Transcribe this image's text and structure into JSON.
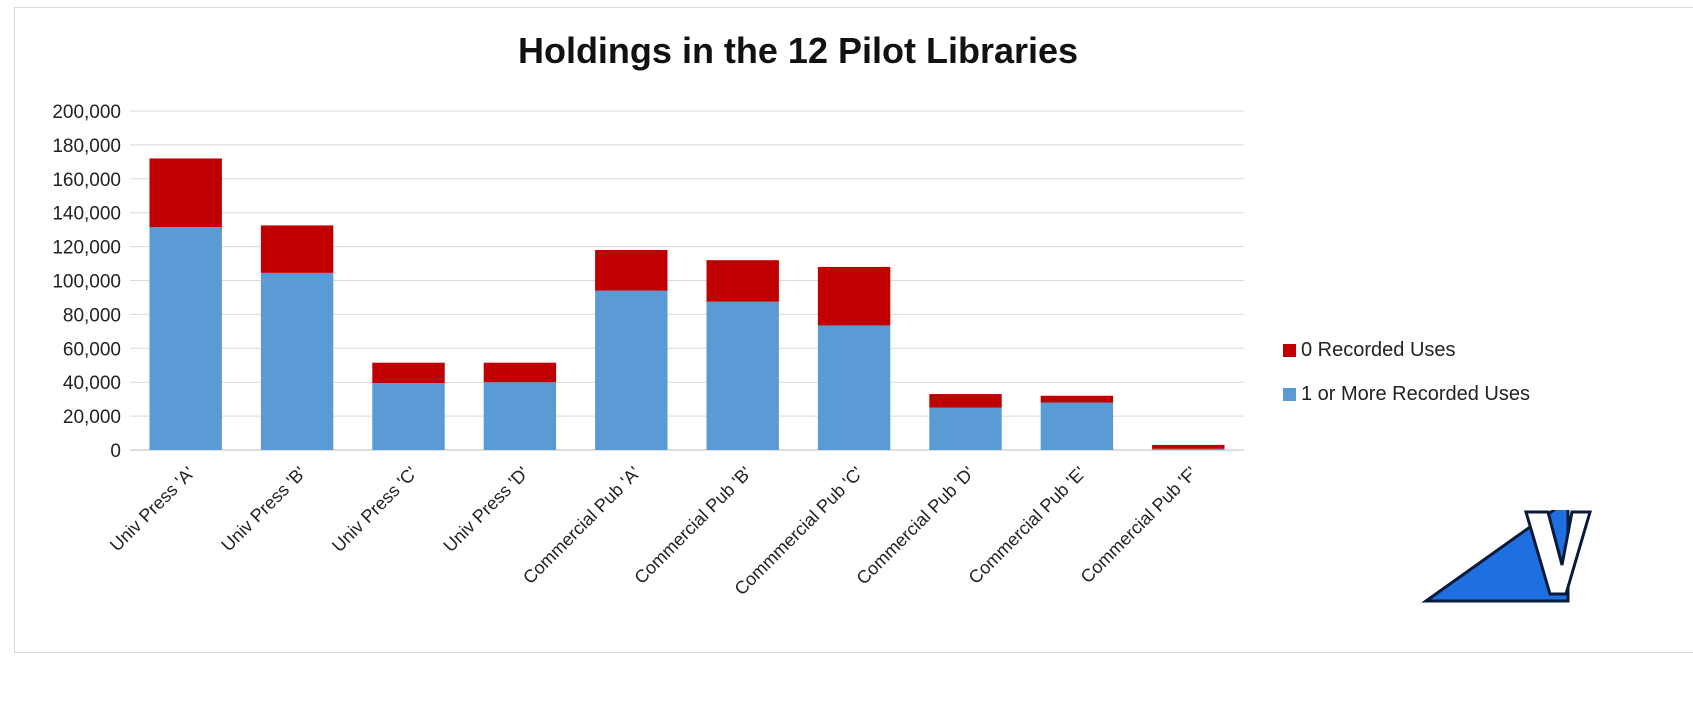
{
  "chart_data": {
    "type": "bar",
    "stacked": true,
    "title": "Holdings in the 12 Pilot Libraries",
    "xlabel": "",
    "ylabel": "",
    "ylim": [
      0,
      200000
    ],
    "yticks": [
      0,
      20000,
      40000,
      60000,
      80000,
      100000,
      120000,
      140000,
      160000,
      180000,
      200000
    ],
    "ytick_labels": [
      "0",
      "20,000",
      "40,000",
      "60,000",
      "80,000",
      "100,000",
      "120,000",
      "140,000",
      "160,000",
      "180,000",
      "200,000"
    ],
    "grid": true,
    "legend_position": "right",
    "categories": [
      "Univ Press 'A'",
      "Univ Press 'B'",
      "Univ Press 'C'",
      "Univ Press 'D'",
      "Commercial Pub 'A'",
      "Commercial Pub 'B'",
      "Commmercial Pub 'C'",
      "Commercial Pub 'D'",
      "Commercial Pub 'E'",
      "Commercial Pub 'F'"
    ],
    "series": [
      {
        "name": "1 or More Recorded Uses",
        "color": "#5b9bd5",
        "values": [
          131500,
          104500,
          39500,
          40000,
          94000,
          87500,
          73500,
          25000,
          28000,
          700
        ]
      },
      {
        "name": "0 Recorded Uses",
        "color": "#c00000",
        "values": [
          40500,
          28000,
          12000,
          11500,
          24000,
          24500,
          34500,
          8000,
          4000,
          2300
        ]
      }
    ],
    "legend_order": [
      "0 Recorded Uses",
      "1 or More Recorded Uses"
    ]
  },
  "logo": {
    "icon": "triangle-v-logo-icon",
    "colors": {
      "fill": "#1e6fe0",
      "stroke": "#0a1a3a"
    }
  }
}
